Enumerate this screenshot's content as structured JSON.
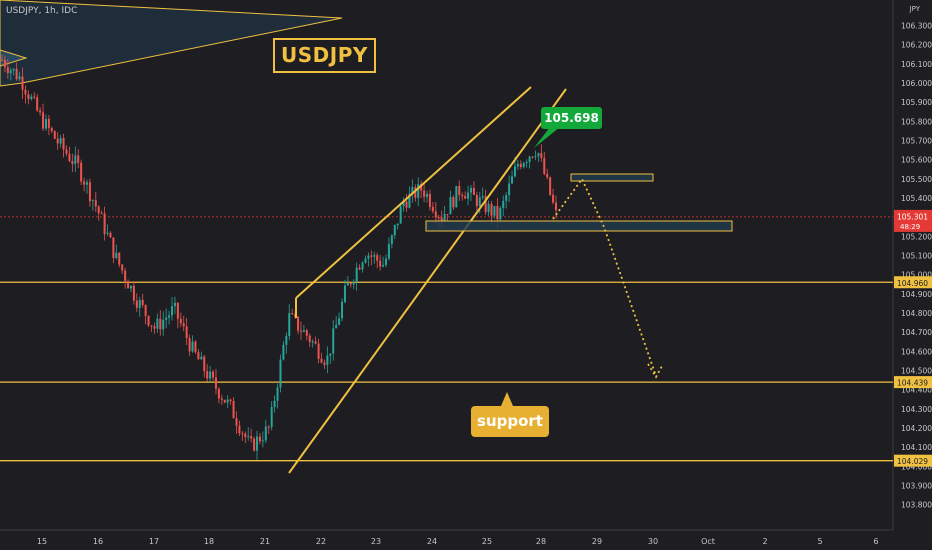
{
  "header": {
    "symbol_line": "USDJPY, 1h, IDC",
    "currency": "JPY"
  },
  "annotations": {
    "title": "USDJPY",
    "support": "support",
    "peak_price": "105.698"
  },
  "colors": {
    "background": "#1e1e22",
    "up": "#26a69a",
    "down": "#ef5350",
    "level": "#f0c040",
    "zone_fill": "#1f3b4d",
    "callout_green": "#13a83a",
    "current_price": "#e53935"
  },
  "chart_data": {
    "type": "candlestick",
    "symbol": "USDJPY",
    "timeframe": "1h",
    "source": "IDC",
    "x_tick_labels": [
      "15",
      "16",
      "17",
      "18",
      "21",
      "22",
      "23",
      "24",
      "25",
      "28",
      "29",
      "30",
      "Oct",
      "2",
      "5",
      "6"
    ],
    "y_tick_labels": [
      "106.300",
      "106.200",
      "106.100",
      "106.000",
      "105.900",
      "105.800",
      "105.700",
      "105.600",
      "105.500",
      "105.400",
      "105.300",
      "105.200",
      "105.100",
      "105.000",
      "104.900",
      "104.800",
      "104.700",
      "104.600",
      "104.500",
      "104.400",
      "104.300",
      "104.200",
      "104.100",
      "104.000",
      "103.900",
      "103.800"
    ],
    "ylim": [
      103.73,
      106.37
    ],
    "horizontal_levels": [
      {
        "price": 104.96,
        "label": "104.960"
      },
      {
        "price": 104.439,
        "label": "104.439"
      },
      {
        "price": 104.029,
        "label": "104.029"
      }
    ],
    "current_price": {
      "value": "105.301",
      "countdown": "48:29"
    },
    "peak": 105.698,
    "trend_points": [
      [
        "Sep 15",
        106.12
      ],
      [
        "Sep 15",
        106.02
      ],
      [
        "Sep 15",
        105.82
      ],
      [
        "Sep 16",
        105.68
      ],
      [
        "Sep 16",
        105.56
      ],
      [
        "Sep 17",
        105.34
      ],
      [
        "Sep 17",
        105.08
      ],
      [
        "Sep 17",
        104.88
      ],
      [
        "Sep 18",
        104.72
      ],
      [
        "Sep 18",
        104.82
      ],
      [
        "Sep 18",
        104.6
      ],
      [
        "Sep 21",
        104.44
      ],
      [
        "Sep 21",
        104.3
      ],
      [
        "Sep 21",
        104.1
      ],
      [
        "Sep 21",
        104.2
      ],
      [
        "Sep 22",
        104.78
      ],
      [
        "Sep 22",
        104.68
      ],
      [
        "Sep 22",
        104.55
      ],
      [
        "Sep 23",
        104.92
      ],
      [
        "Sep 23",
        105.12
      ],
      [
        "Sep 23",
        105.05
      ],
      [
        "Sep 24",
        105.38
      ],
      [
        "Sep 24",
        105.45
      ],
      [
        "Sep 24",
        105.3
      ],
      [
        "Sep 25",
        105.45
      ],
      [
        "Sep 25",
        105.38
      ],
      [
        "Sep 25",
        105.3
      ],
      [
        "Sep 28",
        105.58
      ],
      [
        "Sep 28",
        105.66
      ],
      [
        "Sep 28",
        105.31
      ]
    ]
  }
}
